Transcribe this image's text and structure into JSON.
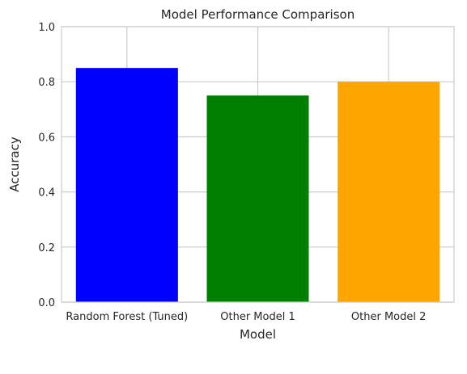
{
  "chart_data": {
    "type": "bar",
    "title": "Model Performance Comparison",
    "xlabel": "Model",
    "ylabel": "Accuracy",
    "categories": [
      "Random Forest (Tuned)",
      "Other Model 1",
      "Other Model 2"
    ],
    "values": [
      0.85,
      0.75,
      0.8
    ],
    "bar_colors": [
      "#0000ff",
      "#008000",
      "#ffa500"
    ],
    "ylim": [
      0,
      1.0
    ],
    "yticks": [
      "0.0",
      "0.2",
      "0.4",
      "0.6",
      "0.8",
      "1.0"
    ],
    "grid": true,
    "grid_color": "#cccccc",
    "axes_edge_color": "#cccccc",
    "background": "#ffffff"
  }
}
